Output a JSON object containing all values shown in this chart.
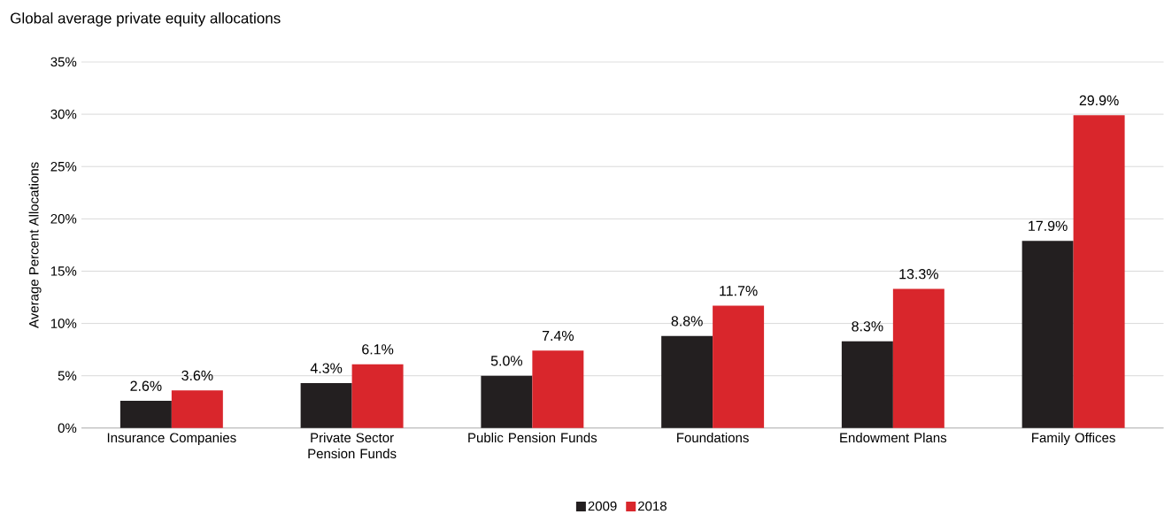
{
  "chart_data": {
    "type": "bar",
    "title": "Global average private equity allocations",
    "ylabel": "Average Percent  Allocations",
    "categories": [
      "Insurance Companies",
      "Private Sector Pension Funds",
      "Public Pension Funds",
      "Foundations",
      "Endowment Plans",
      "Family Offices"
    ],
    "series": [
      {
        "name": "2009",
        "color": "#231f20",
        "values": [
          2.6,
          4.3,
          5.0,
          8.8,
          8.3,
          17.9
        ],
        "value_labels": [
          "2.6%",
          "4.3%",
          "5.0%",
          "8.8%",
          "8.3%",
          "17.9%"
        ]
      },
      {
        "name": "2018",
        "color": "#d9262c",
        "values": [
          3.6,
          6.1,
          7.4,
          11.7,
          13.3,
          29.9
        ],
        "value_labels": [
          "3.6%",
          "6.1%",
          "7.4%",
          "11.7%",
          "13.3%",
          "29.9%"
        ]
      }
    ],
    "ylim": [
      0,
      35
    ],
    "yticks": [
      {
        "value": 0,
        "label": "0%"
      },
      {
        "value": 5,
        "label": "5%"
      },
      {
        "value": 10,
        "label": "10%"
      },
      {
        "value": 15,
        "label": "15%"
      },
      {
        "value": 20,
        "label": "20%"
      },
      {
        "value": 25,
        "label": "25%"
      },
      {
        "value": 30,
        "label": "30%"
      },
      {
        "value": 35,
        "label": "35%"
      }
    ],
    "grid": "y",
    "legend": "bottom"
  }
}
